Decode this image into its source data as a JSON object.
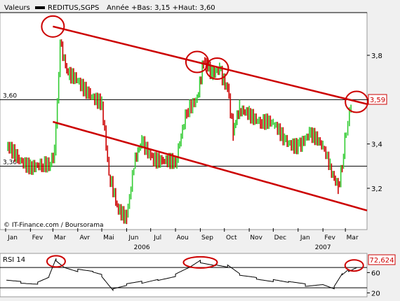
{
  "header": {
    "label": "Valeurs",
    "ticker": "REDITUS,SGPS",
    "range_text": "Année +Bas: 3,15 +Haut: 3,60"
  },
  "credit": "© IT-Finance.com / Boursorama",
  "chart_data": [
    {
      "type": "line",
      "title": "",
      "series": [
        {
          "name": "REDITUS,SGPS",
          "color": "#cc0000",
          "up_color": "#33cc33",
          "down_color": "#cc0000",
          "x": [
            "2006-01-02",
            "2006-01-16",
            "2006-02-01",
            "2006-02-15",
            "2006-02-24",
            "2006-03-03",
            "2006-03-10",
            "2006-03-20",
            "2006-04-01",
            "2006-04-15",
            "2006-05-01",
            "2006-05-10",
            "2006-05-20",
            "2006-06-01",
            "2006-06-10",
            "2006-06-20",
            "2006-07-01",
            "2006-07-15",
            "2006-08-01",
            "2006-08-15",
            "2006-08-28",
            "2006-09-05",
            "2006-09-15",
            "2006-09-25",
            "2006-10-05",
            "2006-10-12",
            "2006-10-20",
            "2006-11-01",
            "2006-11-15",
            "2006-12-01",
            "2006-12-15",
            "2007-01-01",
            "2007-01-15",
            "2007-02-01",
            "2007-02-10",
            "2007-02-20",
            "2007-02-25",
            "2007-03-02",
            "2007-03-08"
          ],
          "values": [
            3.38,
            3.34,
            3.31,
            3.3,
            3.29,
            3.36,
            3.86,
            3.7,
            3.68,
            3.64,
            3.58,
            3.25,
            3.12,
            3.08,
            3.3,
            3.4,
            3.35,
            3.33,
            3.3,
            3.55,
            3.62,
            3.78,
            3.7,
            3.74,
            3.66,
            3.45,
            3.55,
            3.55,
            3.5,
            3.48,
            3.42,
            3.4,
            3.44,
            3.38,
            3.3,
            3.22,
            3.3,
            3.45,
            3.59
          ]
        }
      ],
      "trendlines": [
        {
          "name": "upper-channel",
          "color": "#cc0000",
          "from": {
            "x": "2006-03-01",
            "y": 3.93
          },
          "to": {
            "x": "2007-03-28",
            "y": 3.58
          }
        },
        {
          "name": "lower-channel",
          "color": "#cc0000",
          "from": {
            "x": "2006-03-01",
            "y": 3.5
          },
          "to": {
            "x": "2007-03-28",
            "y": 3.1
          }
        }
      ],
      "highlights": [
        {
          "x": "2006-03-01",
          "y": 3.93
        },
        {
          "x": "2006-08-28",
          "y": 3.77
        },
        {
          "x": "2006-09-22",
          "y": 3.74
        },
        {
          "x": "2007-03-15",
          "y": 3.59
        }
      ],
      "reference_lines": [
        {
          "y": 3.6,
          "label": "3,60"
        },
        {
          "y": 3.3,
          "label": "3,30"
        }
      ],
      "last_value_label": "3,59",
      "x_tick_labels": [
        "Jan",
        "Fev",
        "Mar",
        "Avr",
        "Mai",
        "Jun",
        "Jul",
        "Aou",
        "Sep",
        "Oct",
        "Nov",
        "Dec",
        "Jan",
        "Fev",
        "Mar"
      ],
      "x_ticks": [
        "2006-01-01",
        "2006-02-01",
        "2006-03-01",
        "2006-04-01",
        "2006-05-01",
        "2006-06-01",
        "2006-07-01",
        "2006-08-01",
        "2006-09-01",
        "2006-10-01",
        "2006-11-01",
        "2006-12-01",
        "2007-01-01",
        "2007-02-01",
        "2007-03-01"
      ],
      "x_year_labels": [
        {
          "x": "2006-06-20",
          "label": "2006"
        },
        {
          "x": "2007-02-01",
          "label": "2007"
        }
      ],
      "xlim": [
        "2005-12-25",
        "2007-03-28"
      ],
      "y_ticks": [
        3.2,
        3.4,
        3.6,
        3.8
      ],
      "y_tick_labels": [
        "3,2",
        "3,4",
        "3,6",
        "3,8"
      ],
      "ylim": [
        3.02,
        3.98
      ],
      "grid": false
    },
    {
      "type": "line",
      "title": "RSI 14",
      "series": [
        {
          "name": "RSI 14",
          "color": "#000000",
          "x": [
            "2006-01-02",
            "2006-01-20",
            "2006-02-10",
            "2006-02-24",
            "2006-03-05",
            "2006-03-15",
            "2006-04-01",
            "2006-04-20",
            "2006-05-01",
            "2006-05-15",
            "2006-06-01",
            "2006-06-20",
            "2006-07-10",
            "2006-08-01",
            "2006-08-20",
            "2006-09-01",
            "2006-09-20",
            "2006-10-05",
            "2006-10-20",
            "2006-11-10",
            "2006-12-01",
            "2006-12-20",
            "2007-01-10",
            "2007-02-01",
            "2007-02-15",
            "2007-02-25",
            "2007-03-05",
            "2007-03-15"
          ],
          "values": [
            45,
            42,
            40,
            50,
            85,
            72,
            64,
            60,
            55,
            28,
            35,
            40,
            47,
            55,
            70,
            82,
            76,
            72,
            55,
            50,
            45,
            40,
            35,
            38,
            30,
            55,
            65,
            72.6
          ]
        }
      ],
      "highlights": [
        {
          "x": "2006-03-05",
          "y": 82
        },
        {
          "x": "2006-09-01",
          "y": 80
        },
        {
          "x": "2007-03-12",
          "y": 74
        }
      ],
      "reference_lines": [
        {
          "y": 70
        },
        {
          "y": 30
        }
      ],
      "last_value_label": "72,624",
      "y_ticks": [
        20,
        60
      ],
      "y_tick_labels": [
        "20",
        "60"
      ],
      "ylim": [
        15,
        95
      ]
    }
  ]
}
